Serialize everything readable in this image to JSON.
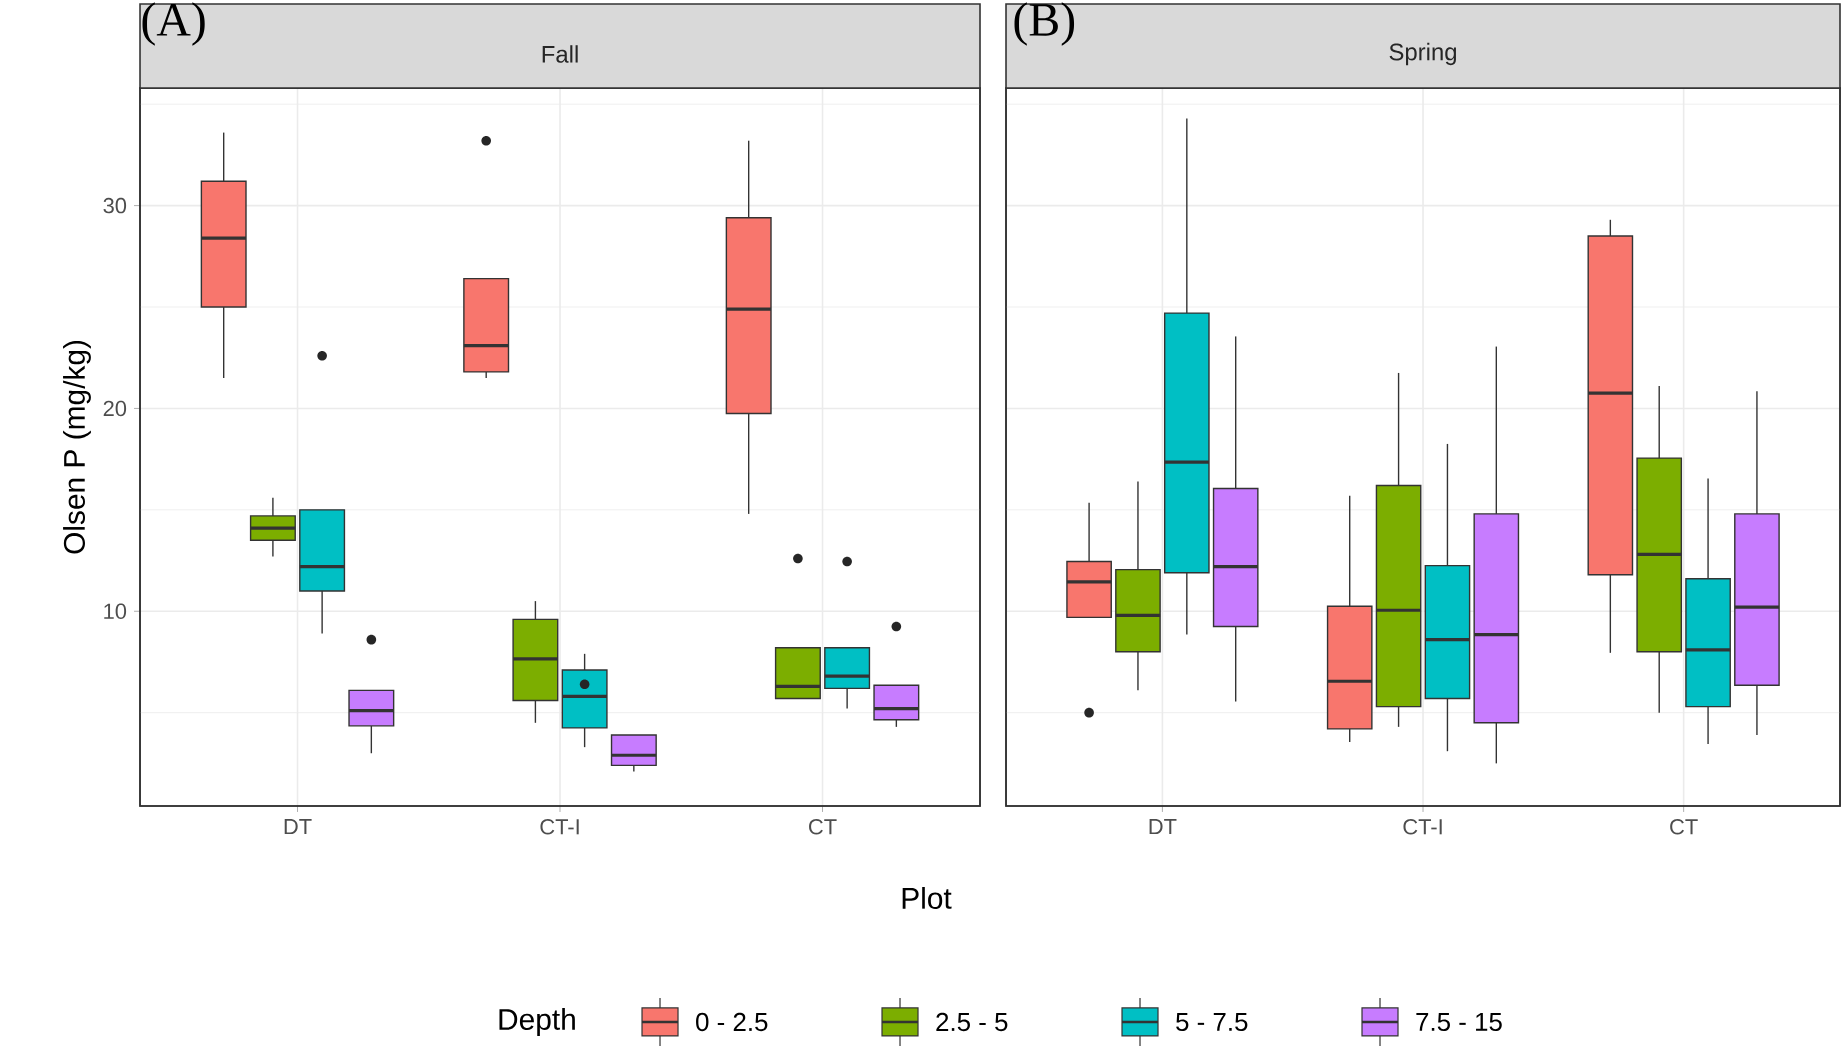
{
  "chart_data": [
    {
      "type": "box",
      "title": "Fall",
      "annotations": [
        "(A)"
      ],
      "xlabel": "Plot",
      "ylabel": "Olsen P (mg/kg)",
      "categories": [
        "DT",
        "CT-I",
        "CT"
      ],
      "ylim": [
        0.4,
        35.8
      ],
      "yticks": [
        {
          "value": 5,
          "label": null
        },
        10,
        {
          "value": 15,
          "label": null
        },
        20,
        {
          "value": 25,
          "label": null
        },
        30,
        {
          "value": 35,
          "label": null
        }
      ],
      "grid": true,
      "legend": "bottom",
      "legend_title": "Depth",
      "series": [
        {
          "name": "0 - 2.5",
          "color": "#f8766d",
          "boxes": [
            {
              "low": 21.5,
              "q1": 25.0,
              "median": 28.4,
              "q3": 31.2,
              "high": 33.6
            },
            {
              "low": 21.5,
              "q1": 21.8,
              "median": 23.1,
              "q3": 26.4,
              "high": 26.4,
              "outliers": [
                33.2
              ]
            },
            {
              "low": 14.8,
              "q1": 19.75,
              "median": 24.9,
              "q3": 29.4,
              "high": 33.2
            }
          ]
        },
        {
          "name": "2.5 - 5",
          "color": "#7cae00",
          "boxes": [
            {
              "low": 12.7,
              "q1": 13.5,
              "median": 14.1,
              "q3": 14.7,
              "high": 15.6
            },
            {
              "low": 4.5,
              "q1": 5.6,
              "median": 7.65,
              "q3": 9.6,
              "high": 10.5
            },
            {
              "low": 5.7,
              "q1": 5.7,
              "median": 6.3,
              "q3": 8.2,
              "high": 8.2,
              "outliers": [
                12.6
              ]
            }
          ]
        },
        {
          "name": "5 - 7.5",
          "color": "#00bfc4",
          "boxes": [
            {
              "low": 8.9,
              "q1": 11.0,
              "median": 12.2,
              "q3": 15.0,
              "high": 15.0,
              "outliers": [
                22.6
              ]
            },
            {
              "low": 3.3,
              "q1": 4.25,
              "median": 5.8,
              "q3": 7.1,
              "high": 7.9,
              "outliers": [
                6.4
              ]
            },
            {
              "low": 5.2,
              "q1": 6.2,
              "median": 6.8,
              "q3": 8.2,
              "high": 8.2,
              "outliers": [
                12.45
              ]
            }
          ]
        },
        {
          "name": "7.5 - 15",
          "color": "#c77cff",
          "boxes": [
            {
              "low": 3.0,
              "q1": 4.35,
              "median": 5.1,
              "q3": 6.1,
              "high": 6.1,
              "outliers": [
                8.6
              ]
            },
            {
              "low": 2.1,
              "q1": 2.4,
              "median": 2.9,
              "q3": 3.9,
              "high": 3.9
            },
            {
              "low": 4.3,
              "q1": 4.65,
              "median": 5.2,
              "q3": 6.35,
              "high": 6.35,
              "outliers": [
                9.25
              ]
            }
          ]
        }
      ]
    },
    {
      "type": "box",
      "title": "Spring",
      "annotations": [
        "(B)"
      ],
      "categories": [
        "DT",
        "CT-I",
        "CT"
      ],
      "ylim": [
        0.4,
        35.8
      ],
      "yticks": [
        {
          "value": 5,
          "label": null
        },
        10,
        {
          "value": 15,
          "label": null
        },
        20,
        {
          "value": 25,
          "label": null
        },
        30,
        {
          "value": 35,
          "label": null
        }
      ],
      "tick_labels": "x",
      "grid": true,
      "series": [
        {
          "color": "#f8766d",
          "boxes": [
            {
              "low": 9.7,
              "q1": 9.7,
              "median": 11.45,
              "q3": 12.45,
              "high": 15.35,
              "outliers": [
                5.0
              ]
            },
            {
              "low": 3.55,
              "q1": 4.2,
              "median": 6.55,
              "q3": 10.25,
              "high": 15.7
            },
            {
              "low": 7.95,
              "q1": 11.8,
              "median": 20.75,
              "q3": 28.5,
              "high": 29.3
            }
          ]
        },
        {
          "color": "#7cae00",
          "boxes": [
            {
              "low": 6.1,
              "q1": 8.0,
              "median": 9.8,
              "q3": 12.05,
              "high": 16.4
            },
            {
              "low": 4.3,
              "q1": 5.3,
              "median": 10.05,
              "q3": 16.2,
              "high": 21.75
            },
            {
              "low": 5.0,
              "q1": 8.0,
              "median": 12.8,
              "q3": 17.55,
              "high": 21.1
            }
          ]
        },
        {
          "color": "#00bfc4",
          "boxes": [
            {
              "low": 8.85,
              "q1": 11.9,
              "median": 17.35,
              "q3": 24.7,
              "high": 34.3
            },
            {
              "low": 3.1,
              "q1": 5.7,
              "median": 8.6,
              "q3": 12.25,
              "high": 18.25
            },
            {
              "low": 3.45,
              "q1": 5.3,
              "median": 8.1,
              "q3": 11.6,
              "high": 16.55
            }
          ]
        },
        {
          "color": "#c77cff",
          "boxes": [
            {
              "low": 5.55,
              "q1": 9.25,
              "median": 12.2,
              "q3": 16.05,
              "high": 23.55
            },
            {
              "low": 2.5,
              "q1": 4.5,
              "median": 8.85,
              "q3": 14.8,
              "high": 23.05
            },
            {
              "low": 3.9,
              "q1": 6.35,
              "median": 10.2,
              "q3": 14.8,
              "high": 20.85
            }
          ]
        }
      ]
    }
  ]
}
